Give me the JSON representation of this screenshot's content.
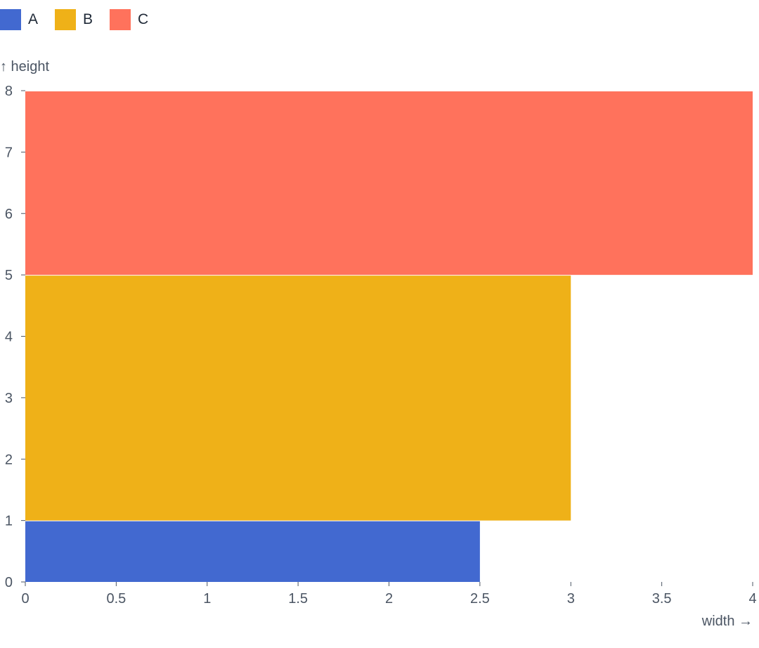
{
  "chart_data": {
    "type": "rect",
    "xlabel": "width →",
    "ylabel": "↑ height",
    "xlim": [
      0,
      4
    ],
    "ylim": [
      0,
      8
    ],
    "x_ticks": [
      "0",
      "0.5",
      "1",
      "1.5",
      "2",
      "2.5",
      "3",
      "3.5",
      "4"
    ],
    "y_ticks": [
      "0",
      "1",
      "2",
      "3",
      "4",
      "5",
      "6",
      "7",
      "8"
    ],
    "grid": false,
    "legend_position": "top-left",
    "series": [
      {
        "name": "A",
        "color": "#4269d0",
        "x0": 0,
        "x1": 2.5,
        "y0": 0,
        "y1": 1
      },
      {
        "name": "B",
        "color": "#efb118",
        "x0": 0,
        "x1": 3,
        "y0": 1,
        "y1": 5
      },
      {
        "name": "C",
        "color": "#ff725c",
        "x0": 0,
        "x1": 4,
        "y0": 5,
        "y1": 8
      }
    ]
  }
}
